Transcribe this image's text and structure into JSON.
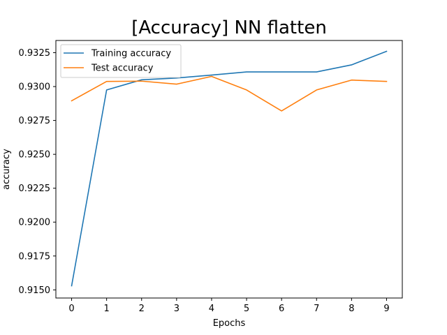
{
  "chart_data": {
    "type": "line",
    "title": "[Accuracy] NN flatten",
    "xlabel": "Epochs",
    "ylabel": "accuracy",
    "x": [
      0,
      1,
      2,
      3,
      4,
      5,
      6,
      7,
      8,
      9
    ],
    "x_ticks": [
      "0",
      "1",
      "2",
      "3",
      "4",
      "5",
      "6",
      "7",
      "8",
      "9"
    ],
    "xlim": [
      -0.45,
      9.45
    ],
    "ylim": [
      0.9144,
      0.9334
    ],
    "y_ticks": [
      0.915,
      0.9175,
      0.92,
      0.9225,
      0.925,
      0.9275,
      0.93,
      0.9325
    ],
    "y_tick_labels": [
      "0.9150",
      "0.9175",
      "0.9200",
      "0.9225",
      "0.9250",
      "0.9275",
      "0.9300",
      "0.9325"
    ],
    "grid": false,
    "legend": {
      "position": "top-left"
    },
    "series": [
      {
        "name": "Training accuracy",
        "color": "#1f77b4",
        "values": [
          0.9153,
          0.92975,
          0.9305,
          0.93063,
          0.93085,
          0.93108,
          0.93108,
          0.93108,
          0.9316,
          0.9326
        ]
      },
      {
        "name": "Test accuracy",
        "color": "#ff7f0e",
        "values": [
          0.92895,
          0.93038,
          0.9304,
          0.93018,
          0.93075,
          0.92975,
          0.9282,
          0.92975,
          0.93048,
          0.93038
        ]
      }
    ]
  }
}
